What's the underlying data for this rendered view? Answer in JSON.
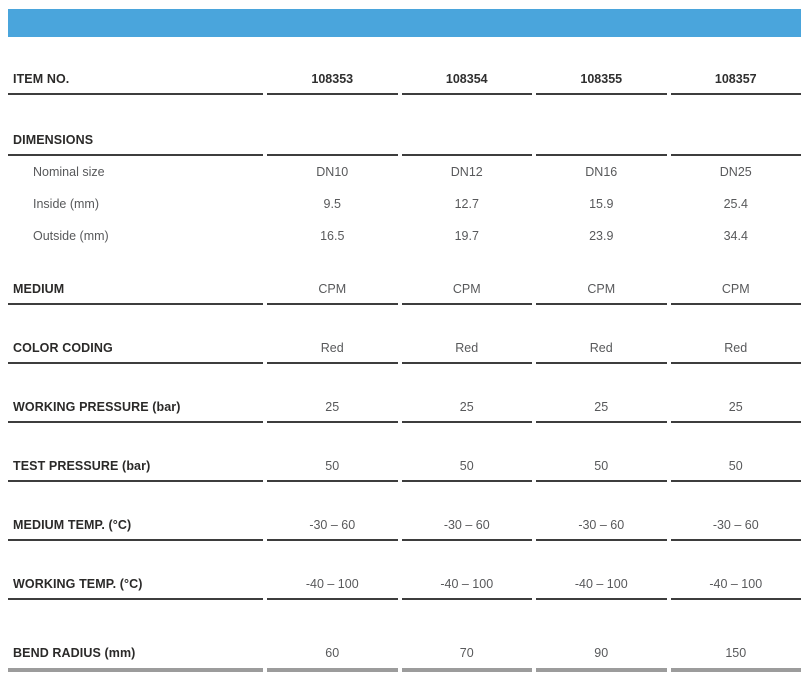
{
  "accent_color": "#4AA5DC",
  "table": {
    "rows": [
      {
        "label": "ITEM NO.",
        "values": [
          "108353",
          "108354",
          "108355",
          "108357"
        ]
      },
      {
        "label": "DIMENSIONS",
        "values": [
          "",
          "",
          "",
          ""
        ]
      },
      {
        "label": "Nominal size",
        "values": [
          "DN10",
          "DN12",
          "DN16",
          "DN25"
        ]
      },
      {
        "label": "Inside (mm)",
        "values": [
          "9.5",
          "12.7",
          "15.9",
          "25.4"
        ]
      },
      {
        "label": "Outside (mm)",
        "values": [
          "16.5",
          "19.7",
          "23.9",
          "34.4"
        ]
      },
      {
        "label": "MEDIUM",
        "values": [
          "CPM",
          "CPM",
          "CPM",
          "CPM"
        ]
      },
      {
        "label": "COLOR CODING",
        "values": [
          "Red",
          "Red",
          "Red",
          "Red"
        ]
      },
      {
        "label": "WORKING PRESSURE (bar)",
        "values": [
          "25",
          "25",
          "25",
          "25"
        ]
      },
      {
        "label": "TEST PRESSURE (bar)",
        "values": [
          "50",
          "50",
          "50",
          "50"
        ]
      },
      {
        "label": "MEDIUM TEMP. (°C)",
        "values": [
          "-30 – 60",
          "-30 – 60",
          "-30 – 60",
          "-30 – 60"
        ]
      },
      {
        "label": "WORKING TEMP. (°C)",
        "values": [
          "-40 – 100",
          "-40 – 100",
          "-40 – 100",
          "-40 – 100"
        ]
      },
      {
        "label": "BEND RADIUS (mm)",
        "values": [
          "60",
          "70",
          "90",
          "150"
        ]
      }
    ]
  }
}
